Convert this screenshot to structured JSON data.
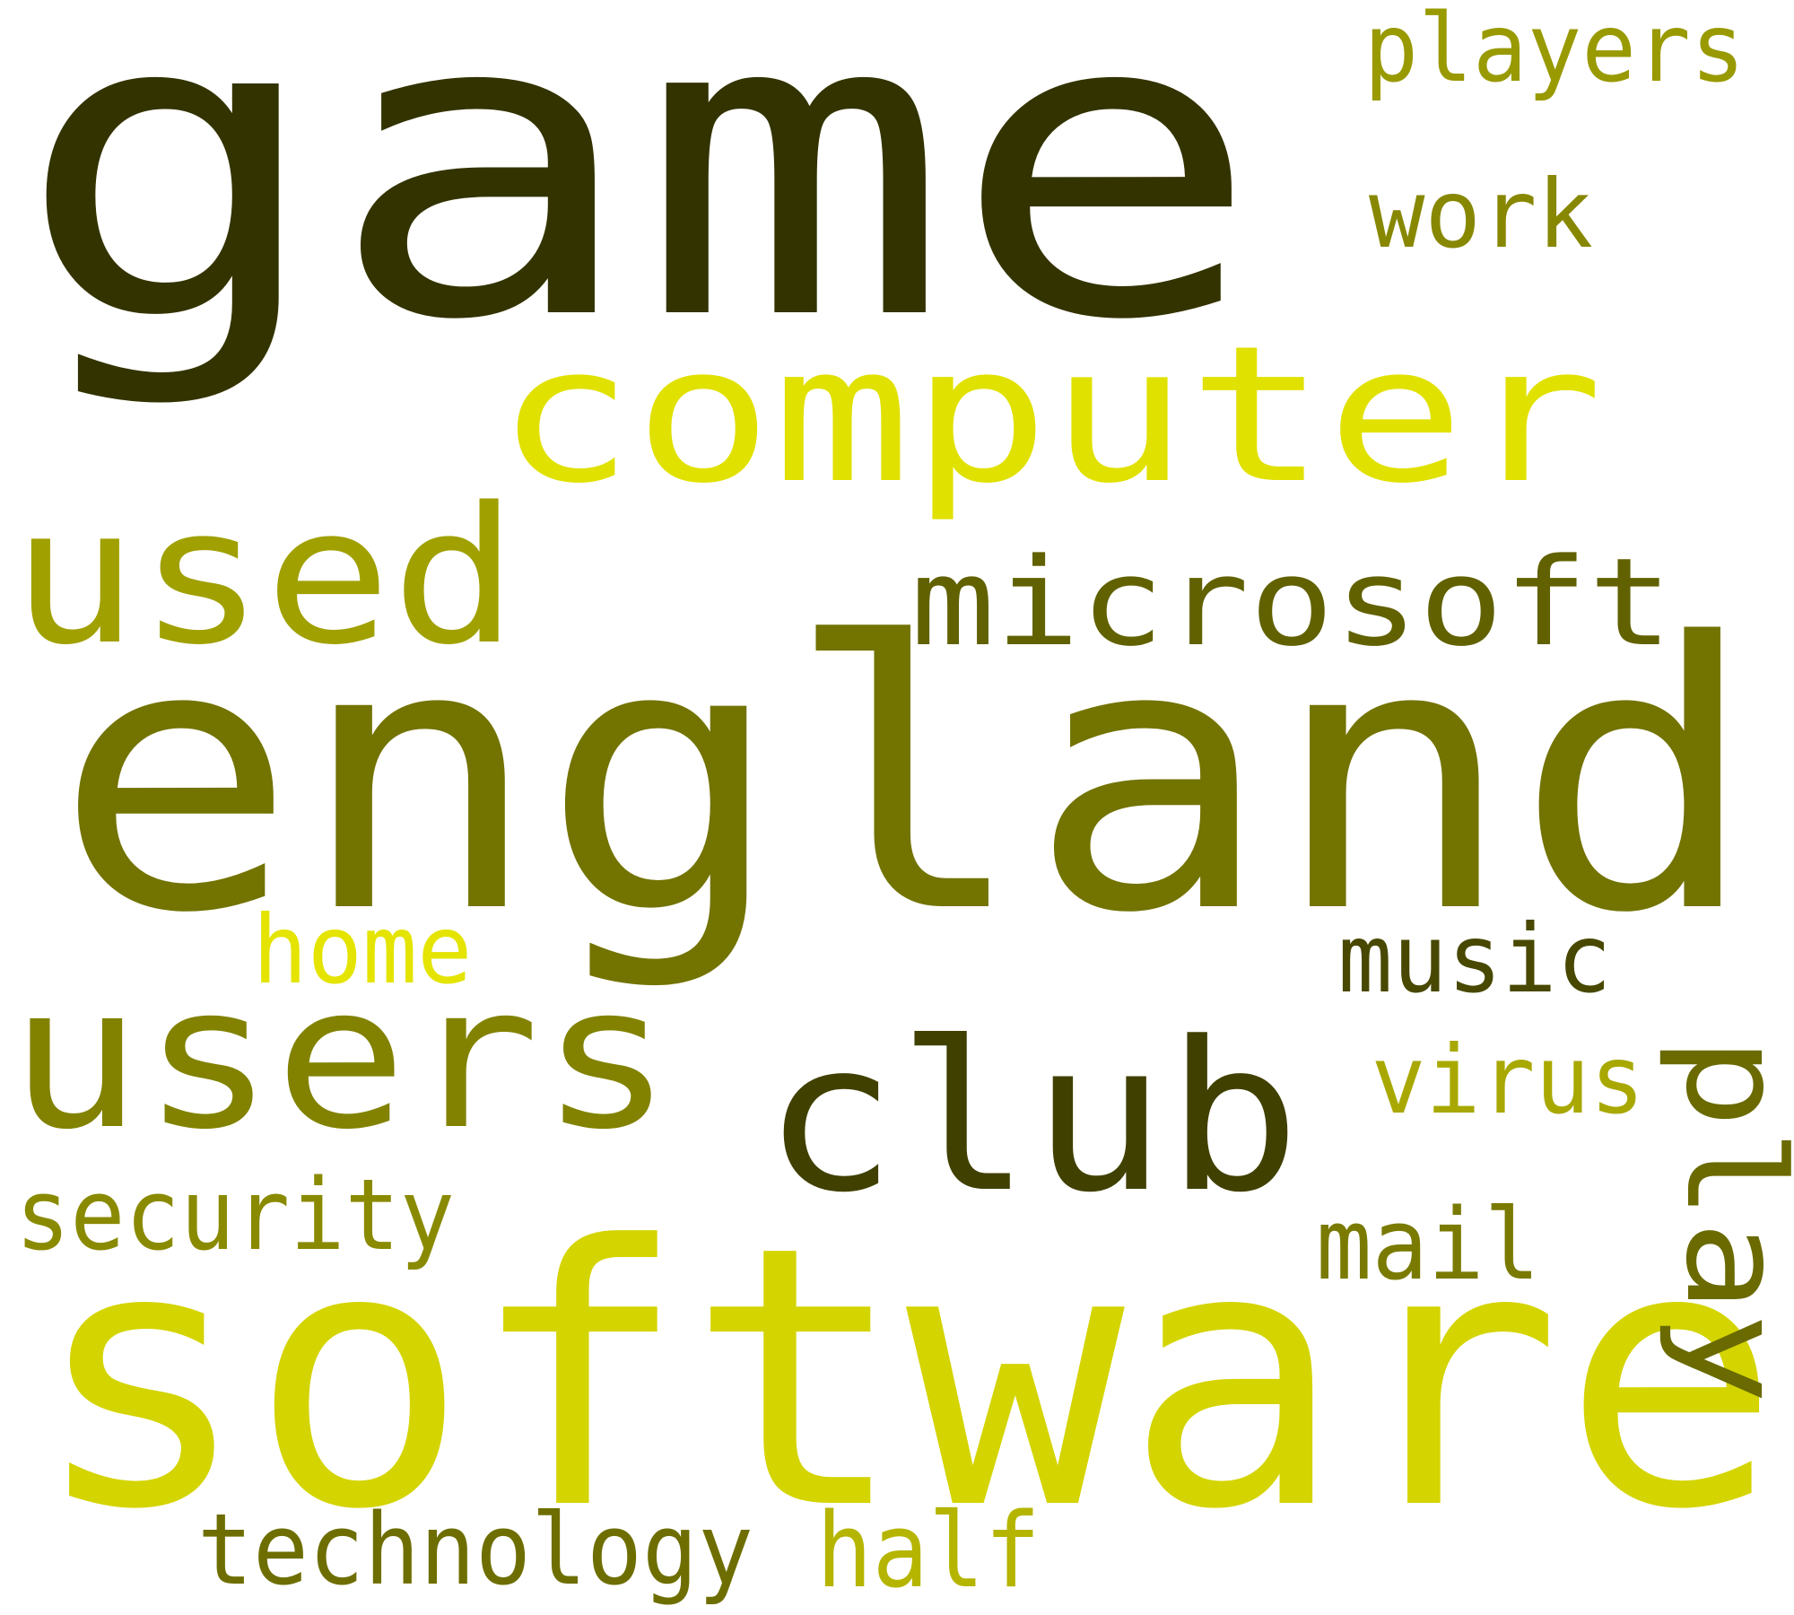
{
  "words": [
    {
      "text": "game",
      "color": "#333300"
    },
    {
      "text": "england",
      "color": "#737300"
    },
    {
      "text": "software",
      "color": "#d4d400"
    },
    {
      "text": "computer",
      "color": "#e1e100"
    },
    {
      "text": "users",
      "color": "#828200"
    },
    {
      "text": "used",
      "color": "#a0a000"
    },
    {
      "text": "club",
      "color": "#404000"
    },
    {
      "text": "microsoft",
      "color": "#616100"
    },
    {
      "text": "players",
      "color": "#999900"
    },
    {
      "text": "work",
      "color": "#878700"
    },
    {
      "text": "home",
      "color": "#e4e400"
    },
    {
      "text": "music",
      "color": "#484800"
    },
    {
      "text": "virus",
      "color": "#a8a800"
    },
    {
      "text": "play",
      "color": "#6a6a00"
    },
    {
      "text": "security",
      "color": "#8a8a00"
    },
    {
      "text": "mail",
      "color": "#7a7a00"
    },
    {
      "text": "technology",
      "color": "#6e6e00"
    },
    {
      "text": "half",
      "color": "#b5b500"
    }
  ]
}
